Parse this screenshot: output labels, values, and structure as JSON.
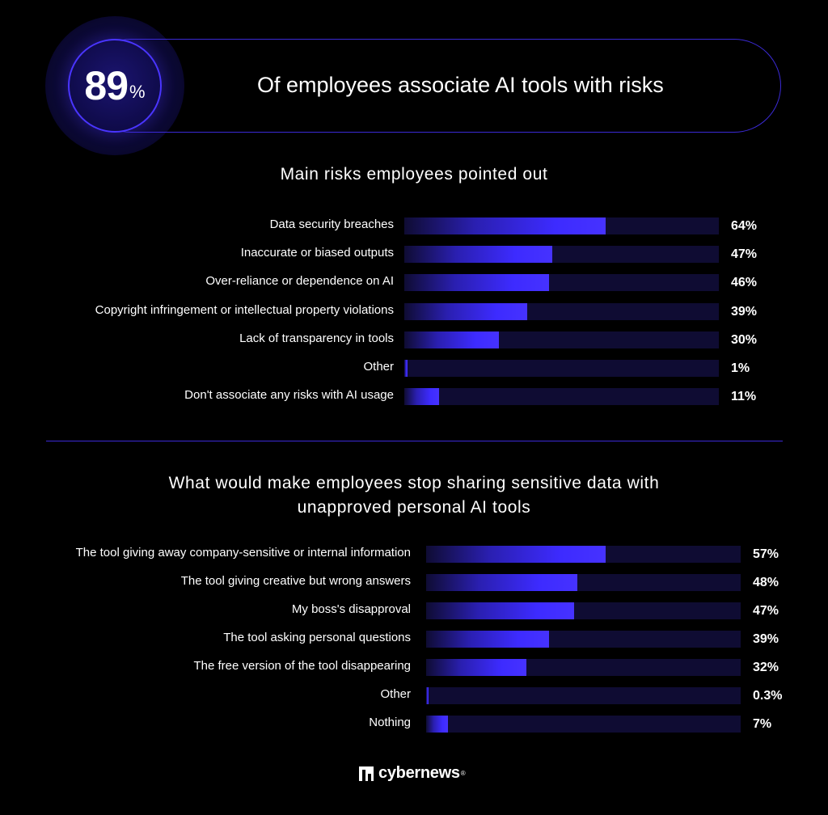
{
  "hero": {
    "number": "89",
    "unit": "%",
    "text": "Of employees associate AI tools with risks"
  },
  "chart_data": [
    {
      "type": "bar",
      "orientation": "horizontal",
      "title": "Main risks employees pointed out",
      "categories": [
        "Data security breaches",
        "Inaccurate or biased outputs",
        "Over-reliance or dependence on AI",
        "Copyright infringement or intellectual property violations",
        "Lack of transparency in tools",
        "Other",
        "Don't associate any risks with AI usage"
      ],
      "values": [
        64,
        47,
        46,
        39,
        30,
        1,
        11
      ],
      "value_labels": [
        "64%",
        "47%",
        "46%",
        "39%",
        "30%",
        "1%",
        "11%"
      ],
      "xlim": [
        0,
        100
      ]
    },
    {
      "type": "bar",
      "orientation": "horizontal",
      "title": "What would make employees stop sharing sensitive data with unapproved personal AI tools",
      "title_lines": [
        "What would make employees stop sharing sensitive data with",
        "unapproved personal AI tools"
      ],
      "categories": [
        "The tool giving away company-sensitive or internal information",
        "The tool giving creative but wrong answers",
        "My boss's disapproval",
        "The tool asking personal questions",
        "The free version of the tool disappearing",
        "Other",
        "Nothing"
      ],
      "values": [
        57,
        48,
        47,
        39,
        32,
        0.3,
        7
      ],
      "value_labels": [
        "57%",
        "48%",
        "47%",
        "39%",
        "32%",
        "0.3%",
        "7%"
      ],
      "xlim": [
        0,
        100
      ]
    }
  ],
  "footer": {
    "brand": "cybernews",
    "reg": "®"
  },
  "colors": {
    "background": "#000000",
    "accent": "#4632ff",
    "track": "#0f0c33",
    "text": "#ffffff"
  }
}
